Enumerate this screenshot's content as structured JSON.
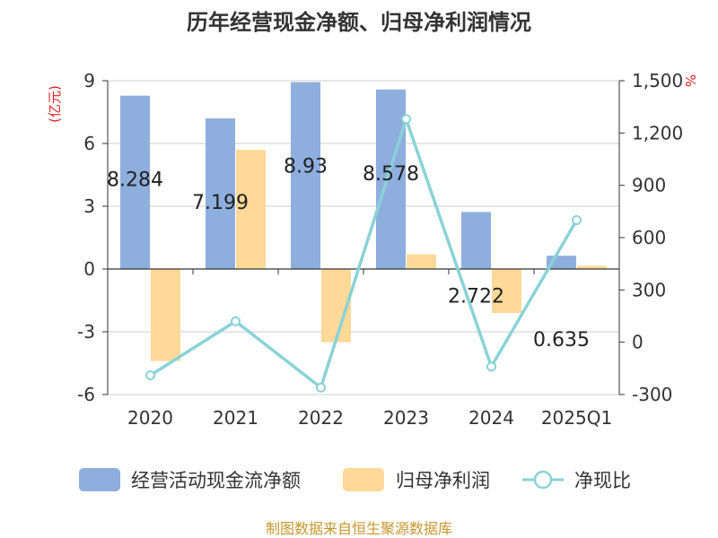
{
  "chart_data": {
    "type": "bar+line",
    "title": "历年经营现金净额、归母净利润情况",
    "categories": [
      "2020",
      "2021",
      "2022",
      "2023",
      "2024",
      "2025Q1"
    ],
    "left_axis": {
      "unit": "(亿元)",
      "ticks": [
        "9",
        "6",
        "3",
        "0",
        "-3",
        "-6"
      ],
      "ylim": [
        -6,
        9
      ]
    },
    "right_axis": {
      "unit": "%",
      "ticks": [
        "1,500",
        "1,200",
        "900",
        "600",
        "300",
        "0",
        "-300"
      ],
      "ylim": [
        -300,
        1500
      ]
    },
    "series": [
      {
        "name": "经营活动现金流净额",
        "type": "bar",
        "axis": "left",
        "color": "#8eaedd",
        "values": [
          8.284,
          7.199,
          8.93,
          8.578,
          2.722,
          0.635
        ],
        "labels": [
          "8.284",
          "7.199",
          "8.93",
          "8.578",
          "2.722",
          "0.635"
        ]
      },
      {
        "name": "归母净利润",
        "type": "bar",
        "axis": "left",
        "color": "#fed997",
        "values": [
          -4.4,
          5.7,
          -3.5,
          0.7,
          -2.1,
          0.15
        ]
      },
      {
        "name": "净现比",
        "type": "line",
        "axis": "right",
        "color": "#8ad2d7",
        "values": [
          -190,
          120,
          -260,
          1280,
          -140,
          700
        ]
      }
    ]
  },
  "source": "制图数据来自恒生聚源数据库",
  "colors": {
    "source": "#c8962e",
    "unit": "#e02020",
    "axis": "#333333",
    "grid": "#cccccc"
  }
}
